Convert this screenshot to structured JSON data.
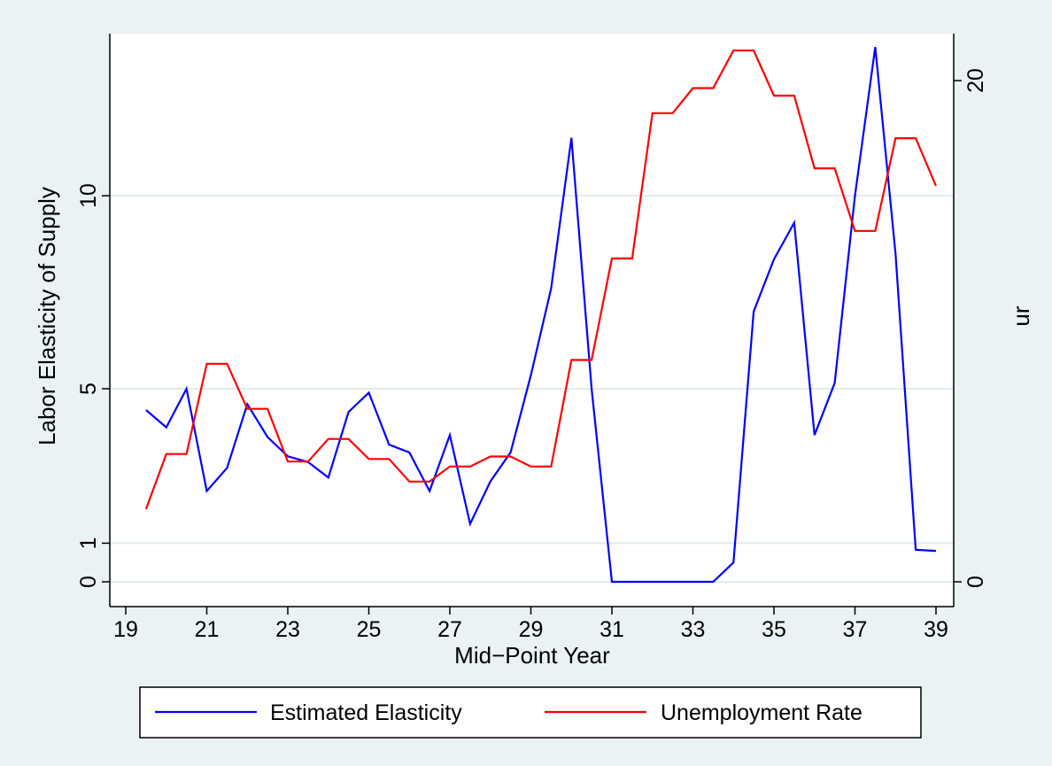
{
  "chart_data": {
    "type": "line",
    "xlabel": "Mid−Point Year",
    "ylabel_left": "Labor Elasticity of Supply",
    "ylabel_right": "ur",
    "xlim": [
      19,
      39
    ],
    "ylim_left": [
      0,
      14
    ],
    "ylim_right": [
      0,
      21.2
    ],
    "x_ticks": [
      19,
      21,
      23,
      25,
      27,
      29,
      31,
      33,
      35,
      37,
      39
    ],
    "y_left_ticks": [
      0,
      1,
      5,
      10
    ],
    "y_right_ticks": [
      0,
      20
    ],
    "grid": "horizontal",
    "legend_position": "bottom",
    "x": [
      19.5,
      20,
      20.5,
      21,
      21.5,
      22,
      22.5,
      23,
      23.5,
      24,
      24.5,
      25,
      25.5,
      26,
      26.5,
      27,
      27.5,
      28,
      28.5,
      29,
      29.5,
      30,
      30.5,
      31,
      31.5,
      32,
      32.5,
      33,
      33.5,
      34,
      34.5,
      35,
      35.5,
      36,
      36.5,
      37,
      37.5,
      38,
      38.5,
      39
    ],
    "series": [
      {
        "name": "Estimated Elasticity",
        "axis": "left",
        "color": "#0000ff",
        "values": [
          4.45,
          4.0,
          5.0,
          2.35,
          2.95,
          4.6,
          3.75,
          3.25,
          3.1,
          2.7,
          4.4,
          4.9,
          3.55,
          3.35,
          2.35,
          3.8,
          1.5,
          2.6,
          3.35,
          5.35,
          7.6,
          11.5,
          5.0,
          0.0,
          0.0,
          0.0,
          0.0,
          0.0,
          0.0,
          0.5,
          7.0,
          8.35,
          9.3,
          3.8,
          5.15,
          10.0,
          13.85,
          8.5,
          0.83,
          0.8
        ]
      },
      {
        "name": "Unemployment Rate",
        "axis": "right",
        "color": "#ff0000",
        "values": [
          2.9,
          5.1,
          5.1,
          8.7,
          8.7,
          6.9,
          6.9,
          4.8,
          4.8,
          5.7,
          5.7,
          4.9,
          4.9,
          4.0,
          4.0,
          4.6,
          4.6,
          5.0,
          5.0,
          4.6,
          4.6,
          8.85,
          8.85,
          12.9,
          12.9,
          18.7,
          18.7,
          19.7,
          19.7,
          21.2,
          21.2,
          19.4,
          19.4,
          16.5,
          16.5,
          14.0,
          14.0,
          17.7,
          17.7,
          15.8
        ]
      }
    ]
  }
}
